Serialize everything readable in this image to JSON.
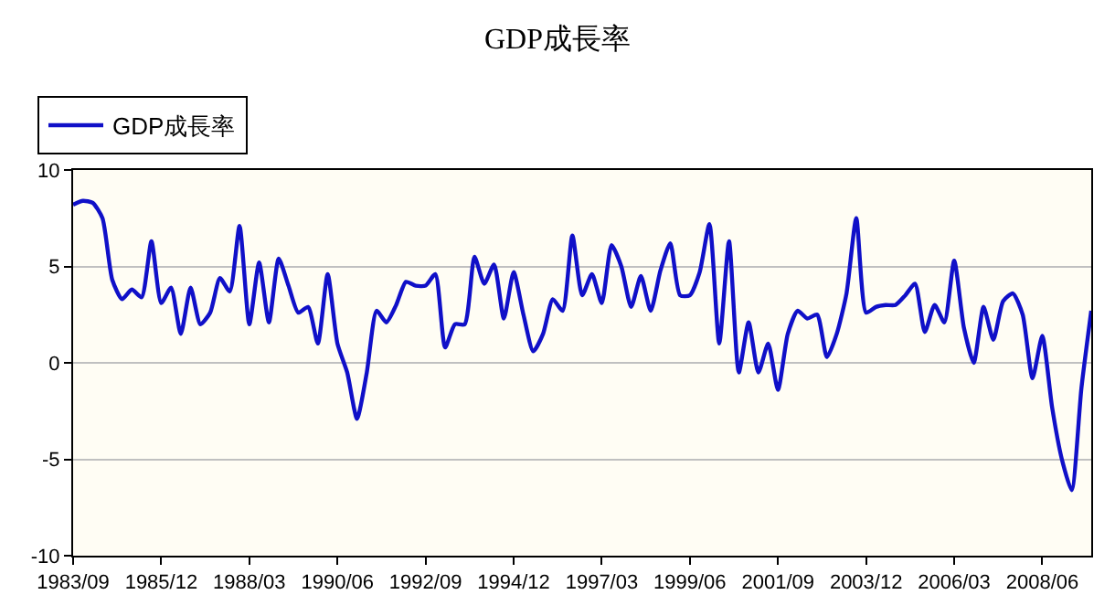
{
  "chart_data": {
    "type": "line",
    "title": "GDP成長率",
    "categories": [
      "1983/09",
      null,
      null,
      null,
      null,
      null,
      null,
      null,
      null,
      "1985/12",
      null,
      null,
      null,
      null,
      null,
      null,
      null,
      null,
      "1988/03",
      null,
      null,
      null,
      null,
      null,
      null,
      null,
      null,
      "1990/06",
      null,
      null,
      null,
      null,
      null,
      null,
      null,
      null,
      "1992/09",
      null,
      null,
      null,
      null,
      null,
      null,
      null,
      null,
      "1994/12",
      null,
      null,
      null,
      null,
      null,
      null,
      null,
      null,
      "1997/03",
      null,
      null,
      null,
      null,
      null,
      null,
      null,
      null,
      "1999/06",
      null,
      null,
      null,
      null,
      null,
      null,
      null,
      null,
      "2001/09",
      null,
      null,
      null,
      null,
      null,
      null,
      null,
      null,
      "2003/12",
      null,
      null,
      null,
      null,
      null,
      null,
      null,
      null,
      "2006/03",
      null,
      null,
      null,
      null,
      null,
      null,
      null,
      null,
      "2008/06",
      null,
      null,
      null,
      null,
      null
    ],
    "series": [
      {
        "name": "GDP成長率",
        "color": "#1010c8",
        "values": [
          8.2,
          8.4,
          8.3,
          7.5,
          4.3,
          3.3,
          3.8,
          3.4,
          6.3,
          3.1,
          3.9,
          1.5,
          3.9,
          2.0,
          2.6,
          4.4,
          3.7,
          7.1,
          2.0,
          5.2,
          2.1,
          5.4,
          4.0,
          2.6,
          2.9,
          1.0,
          4.6,
          1.0,
          -0.5,
          -2.9,
          -0.5,
          2.7,
          2.1,
          3.0,
          4.2,
          4.0,
          4.0,
          4.6,
          0.8,
          2.0,
          2.0,
          5.5,
          4.1,
          5.1,
          2.3,
          4.7,
          2.5,
          0.6,
          1.5,
          3.3,
          2.7,
          6.6,
          3.5,
          4.6,
          3.1,
          6.1,
          5.0,
          2.9,
          4.5,
          2.7,
          4.8,
          6.2,
          3.5,
          3.5,
          4.7,
          7.2,
          1.0,
          6.3,
          -0.5,
          2.1,
          -0.5,
          1.0,
          -1.4,
          1.5,
          2.7,
          2.3,
          2.5,
          0.3,
          1.5,
          3.6,
          7.5,
          2.6,
          2.9,
          3.0,
          3.0,
          3.5,
          4.1,
          1.6,
          3.0,
          2.1,
          5.3,
          1.8,
          0.0,
          2.9,
          1.2,
          3.2,
          3.6,
          2.5,
          -0.8,
          1.4,
          -2.3,
          -5.0,
          -6.6,
          -1.3,
          2.7
        ]
      }
    ],
    "ylim": [
      -10,
      10
    ],
    "yticks": [
      -10,
      -5,
      0,
      5,
      10
    ],
    "grid": "y",
    "legend": "top left",
    "marker": "none",
    "line_style": "solid"
  }
}
